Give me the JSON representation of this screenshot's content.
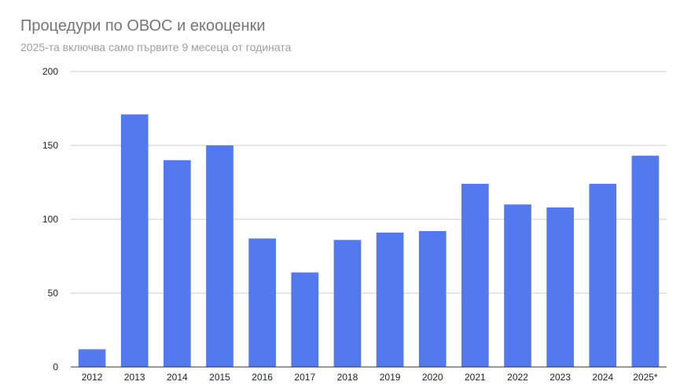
{
  "chart_data": {
    "type": "bar",
    "title": "Процедури по ОВОС и екооценки",
    "subtitle": "2025-та включва само първите 9 месеца от годината",
    "categories": [
      "2012",
      "2013",
      "2014",
      "2015",
      "2016",
      "2017",
      "2018",
      "2019",
      "2020",
      "2021",
      "2022",
      "2023",
      "2024",
      "2025*"
    ],
    "values": [
      12,
      171,
      140,
      150,
      87,
      64,
      86,
      91,
      92,
      124,
      110,
      108,
      124,
      143
    ],
    "ylim": [
      0,
      200
    ],
    "yticks": [
      0,
      50,
      100,
      150,
      200
    ],
    "grid": true,
    "legend": "none",
    "colors": {
      "bar": "#5479ee",
      "grid": "#cccccc",
      "axis": "#333333"
    }
  }
}
